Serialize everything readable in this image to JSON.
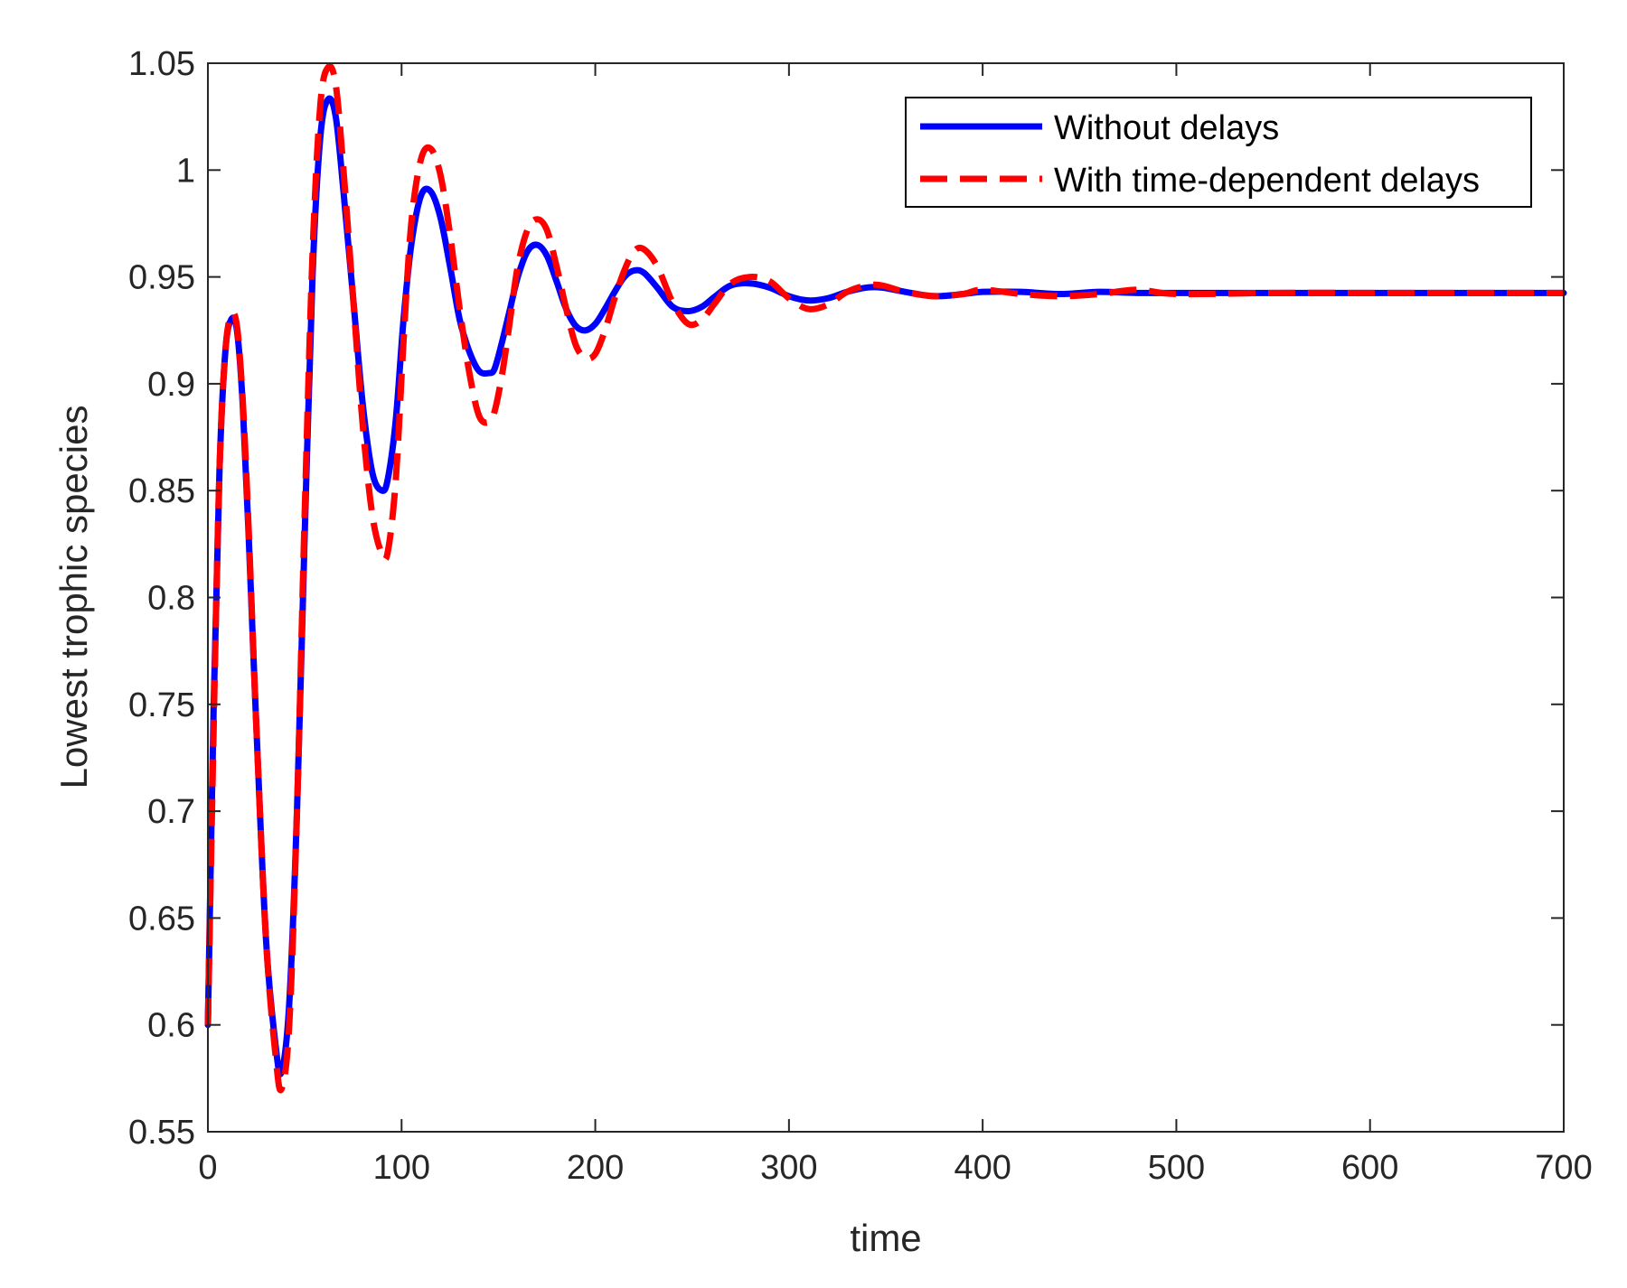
{
  "chart_data": {
    "type": "line",
    "xlabel": "time",
    "ylabel": "Lowest trophic species",
    "xlim": [
      0,
      700
    ],
    "ylim": [
      0.55,
      1.05
    ],
    "xticks": [
      0,
      100,
      200,
      300,
      400,
      500,
      600,
      700
    ],
    "yticks": [
      0.55,
      0.6,
      0.65,
      0.7,
      0.75,
      0.8,
      0.85,
      0.9,
      0.95,
      1,
      1.05
    ],
    "xtick_labels": [
      "0",
      "100",
      "200",
      "300",
      "400",
      "500",
      "600",
      "700"
    ],
    "ytick_labels": [
      "0.55",
      "0.6",
      "0.65",
      "0.7",
      "0.75",
      "0.8",
      "0.85",
      "0.9",
      "0.95",
      "1",
      "1.05"
    ],
    "grid": false,
    "legend_position": "top-right",
    "series": [
      {
        "name": "Without delays",
        "color": "#0000ff",
        "style": "solid",
        "x": [
          0,
          3,
          6,
          9,
          12,
          15,
          18,
          21,
          25,
          30,
          35,
          38,
          42,
          46,
          50,
          54,
          58,
          62,
          66,
          70,
          75,
          80,
          85,
          90,
          93,
          97,
          101,
          105,
          110,
          115,
          120,
          125,
          130,
          135,
          140,
          145,
          148,
          152,
          156,
          160,
          165,
          170,
          175,
          180,
          185,
          190,
          195,
          200,
          205,
          210,
          215,
          220,
          225,
          232,
          240,
          248,
          255,
          262,
          270,
          280,
          290,
          300,
          310,
          320,
          330,
          340,
          348,
          360,
          375,
          390,
          400,
          420,
          440,
          460,
          480,
          500,
          550,
          600,
          650,
          700
        ],
        "y": [
          0.6,
          0.75,
          0.86,
          0.915,
          0.93,
          0.925,
          0.89,
          0.83,
          0.74,
          0.64,
          0.59,
          0.578,
          0.61,
          0.7,
          0.83,
          0.95,
          1.015,
          1.033,
          1.025,
          0.99,
          0.94,
          0.89,
          0.858,
          0.85,
          0.856,
          0.883,
          0.93,
          0.965,
          0.988,
          0.99,
          0.978,
          0.955,
          0.93,
          0.915,
          0.906,
          0.905,
          0.907,
          0.92,
          0.935,
          0.95,
          0.962,
          0.965,
          0.96,
          0.948,
          0.935,
          0.927,
          0.925,
          0.928,
          0.935,
          0.943,
          0.95,
          0.953,
          0.952,
          0.945,
          0.936,
          0.934,
          0.936,
          0.941,
          0.946,
          0.947,
          0.945,
          0.941,
          0.939,
          0.94,
          0.943,
          0.945,
          0.945,
          0.943,
          0.941,
          0.942,
          0.943,
          0.943,
          0.942,
          0.943,
          0.9425,
          0.9425,
          0.9425,
          0.9425,
          0.9425,
          0.9425
        ]
      },
      {
        "name": "With time-dependent delays",
        "color": "#ff0000",
        "style": "dashed",
        "x": [
          0,
          3,
          6,
          9,
          12,
          15,
          18,
          21,
          25,
          30,
          35,
          38,
          42,
          46,
          50,
          54,
          58,
          62,
          66,
          70,
          75,
          80,
          85,
          90,
          93,
          97,
          101,
          105,
          110,
          115,
          120,
          125,
          130,
          135,
          140,
          145,
          148,
          152,
          156,
          160,
          165,
          170,
          175,
          180,
          185,
          190,
          195,
          200,
          205,
          210,
          215,
          220,
          225,
          232,
          240,
          248,
          255,
          262,
          270,
          280,
          290,
          300,
          310,
          320,
          330,
          340,
          348,
          360,
          375,
          390,
          400,
          420,
          440,
          460,
          480,
          500,
          550,
          600,
          650,
          700
        ],
        "y": [
          0.6,
          0.74,
          0.86,
          0.915,
          0.932,
          0.927,
          0.892,
          0.833,
          0.74,
          0.64,
          0.585,
          0.57,
          0.6,
          0.7,
          0.84,
          0.96,
          1.03,
          1.048,
          1.04,
          1.0,
          0.94,
          0.88,
          0.838,
          0.82,
          0.822,
          0.855,
          0.92,
          0.975,
          1.005,
          1.01,
          0.998,
          0.97,
          0.935,
          0.905,
          0.885,
          0.882,
          0.887,
          0.905,
          0.93,
          0.955,
          0.972,
          0.977,
          0.972,
          0.955,
          0.935,
          0.918,
          0.912,
          0.914,
          0.925,
          0.94,
          0.953,
          0.962,
          0.963,
          0.955,
          0.938,
          0.928,
          0.93,
          0.938,
          0.947,
          0.95,
          0.948,
          0.94,
          0.935,
          0.937,
          0.943,
          0.946,
          0.946,
          0.943,
          0.941,
          0.942,
          0.944,
          0.942,
          0.941,
          0.942,
          0.944,
          0.942,
          0.9425,
          0.9425,
          0.9425,
          0.9425
        ]
      }
    ]
  }
}
